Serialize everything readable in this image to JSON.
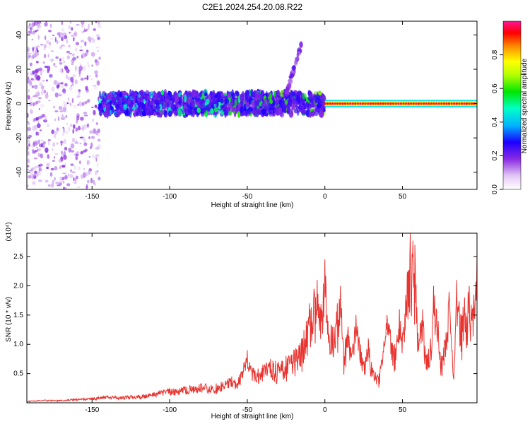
{
  "title": "C2E1.2024.254.20.08.R22",
  "chart_data": [
    {
      "type": "heatmap",
      "xlabel": "Height of straight line (km)",
      "ylabel": "Frequency (Hz)",
      "xlim": [
        -192,
        98
      ],
      "ylim": [
        -50,
        48
      ],
      "x_ticks": [
        -150,
        -100,
        -50,
        0,
        50
      ],
      "y_ticks": [
        -40,
        -20,
        0,
        20,
        40
      ],
      "colorbar": {
        "label": "Normalized spectral amplitude",
        "range": [
          0,
          1
        ],
        "ticks": [
          0.0,
          0.2,
          0.4,
          0.6,
          0.8
        ],
        "tick_labels": [
          "0.0",
          "0.2",
          "0.4",
          "0.6",
          "0.8"
        ]
      },
      "features": [
        {
          "x_range": [
            -192,
            -145
          ],
          "y_range": [
            -50,
            48
          ],
          "amplitude": 0.05
        },
        {
          "x_range": [
            -145,
            0
          ],
          "y_range": [
            -8,
            8
          ],
          "amplitude": 0.3
        },
        {
          "x_range": [
            -25,
            -15
          ],
          "y_range": [
            5,
            35
          ],
          "amplitude": 0.1
        },
        {
          "x_range": [
            0,
            98
          ],
          "y_range": [
            -1,
            1
          ],
          "amplitude": 0.95
        }
      ]
    },
    {
      "type": "line",
      "xlabel": "Height of straight line (km)",
      "ylabel": "SNR (10 * v/v)",
      "y_multiplier_label": "(x10⁴)",
      "xlim": [
        -192,
        98
      ],
      "ylim": [
        0,
        29000
      ],
      "x_ticks": [
        -150,
        -100,
        -50,
        0,
        50
      ],
      "y_ticks": [
        5000,
        10000,
        15000,
        20000,
        25000
      ],
      "y_tick_labels": [
        "0.5",
        "1.0",
        "1.5",
        "2.0",
        "2.5"
      ],
      "color": "#e8332f",
      "series": [
        {
          "x": [
            -192,
            -180,
            -170,
            -160,
            -150,
            -140,
            -130,
            -120,
            -110,
            -100,
            -90,
            -80,
            -70,
            -60,
            -55,
            -50,
            -45,
            -40,
            -35,
            -30,
            -25,
            -20,
            -15,
            -12,
            -10,
            -7,
            -5,
            -3,
            0,
            2,
            5,
            8,
            10,
            12,
            15,
            18,
            20,
            25,
            28,
            30,
            35,
            40,
            45,
            48,
            50,
            53,
            55,
            58,
            60,
            63,
            65,
            68,
            70,
            73,
            75,
            78,
            80,
            83,
            85,
            88,
            90,
            93,
            95,
            98
          ],
          "y": [
            300,
            500,
            500,
            700,
            900,
            1200,
            1200,
            1300,
            1800,
            2500,
            2800,
            3300,
            3300,
            4500,
            4800,
            9000,
            5500,
            6500,
            7500,
            7000,
            8000,
            9000,
            11000,
            14000,
            17000,
            19500,
            21000,
            16000,
            24500,
            14000,
            13000,
            17000,
            20000,
            10000,
            13000,
            10000,
            15000,
            7000,
            11000,
            7000,
            5000,
            15000,
            10000,
            16000,
            12000,
            22000,
            29000,
            27000,
            12000,
            16000,
            8000,
            11000,
            20000,
            14000,
            8000,
            12000,
            19000,
            4000,
            21000,
            15000,
            18000,
            20000,
            16000,
            25000
          ]
        }
      ]
    }
  ]
}
